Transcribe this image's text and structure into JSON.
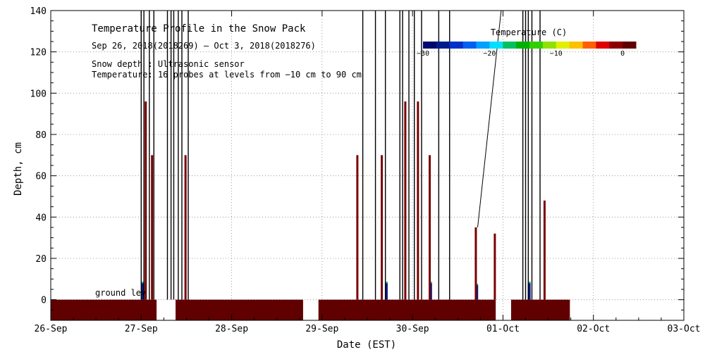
{
  "chart_data": {
    "type": "area",
    "title": "Temperature Profile in the Snow Pack",
    "subtitle": "Sep 26, 2018(2018269) – Oct  3, 2018(2018276)",
    "annotations": [
      "Snow depth : Ultrasonic sensor",
      "Temperature: 16 probes at levels from −10 cm to 90 cm"
    ],
    "ground_label": "ground lev",
    "xlabel": "Date (EST)",
    "ylabel": "Depth, cm",
    "xlim": [
      0,
      7
    ],
    "ylim": [
      -10,
      140
    ],
    "x_ticks": [
      0,
      1,
      2,
      3,
      4,
      5,
      6,
      7
    ],
    "x_tick_labels": [
      "26-Sep",
      "27-Sep",
      "28-Sep",
      "29-Sep",
      "30-Sep",
      "01-Oct",
      "02-Oct",
      "03-Oct"
    ],
    "y_ticks": [
      0,
      20,
      40,
      60,
      80,
      100,
      120,
      140
    ],
    "y_tick_labels": [
      "0",
      "20",
      "40",
      "60",
      "80",
      "100",
      "120",
      "140"
    ],
    "grid": true,
    "colorbar": {
      "title": "Temperature (C)",
      "range": [
        -30,
        2
      ],
      "tick_values": [
        -30,
        -20,
        -10,
        0
      ],
      "tick_labels": [
        "−30",
        "−20",
        "−10",
        "0"
      ],
      "colors": [
        "#000a6e",
        "#001c8c",
        "#0030c8",
        "#0060f0",
        "#00a0ff",
        "#00e0ff",
        "#00c060",
        "#00b000",
        "#30d000",
        "#90e000",
        "#e0f000",
        "#ffc000",
        "#ff6000",
        "#e00000",
        "#8b0000",
        "#600000"
      ]
    },
    "ground_band": {
      "range": [
        -10,
        0
      ],
      "segments": [
        [
          0.0,
          1.17
        ],
        [
          1.38,
          2.79
        ],
        [
          2.96,
          4.92
        ],
        [
          5.09,
          5.74
        ]
      ],
      "color": "#600000"
    },
    "snow_depth_spikes": [
      {
        "x": 1.0,
        "y": 140,
        "color": "#000000"
      },
      {
        "x": 1.03,
        "y": 140,
        "color": "#000000"
      },
      {
        "x": 1.05,
        "y": 96,
        "color": "#7a0000"
      },
      {
        "x": 1.09,
        "y": 140,
        "color": "#000000"
      },
      {
        "x": 1.12,
        "y": 70,
        "color": "#7a0000"
      },
      {
        "x": 1.14,
        "y": 140,
        "color": "#000000"
      },
      {
        "x": 1.29,
        "y": 140,
        "color": "#000000"
      },
      {
        "x": 1.33,
        "y": 140,
        "color": "#000000"
      },
      {
        "x": 1.36,
        "y": 140,
        "color": "#000000"
      },
      {
        "x": 1.41,
        "y": 140,
        "color": "#000000"
      },
      {
        "x": 1.45,
        "y": 140,
        "color": "#000000"
      },
      {
        "x": 1.49,
        "y": 70,
        "color": "#7a0000"
      },
      {
        "x": 1.52,
        "y": 140,
        "color": "#000000"
      },
      {
        "x": 3.39,
        "y": 70,
        "color": "#7a0000"
      },
      {
        "x": 3.45,
        "y": 140,
        "color": "#000000"
      },
      {
        "x": 3.59,
        "y": 140,
        "color": "#000000"
      },
      {
        "x": 3.66,
        "y": 70,
        "color": "#7a0000"
      },
      {
        "x": 3.7,
        "y": 140,
        "color": "#000000"
      },
      {
        "x": 3.86,
        "y": 140,
        "color": "#000000"
      },
      {
        "x": 3.89,
        "y": 140,
        "color": "#000000"
      },
      {
        "x": 3.92,
        "y": 96,
        "color": "#7a0000"
      },
      {
        "x": 3.96,
        "y": 140,
        "color": "#000000"
      },
      {
        "x": 4.02,
        "y": 140,
        "color": "#000000"
      },
      {
        "x": 4.06,
        "y": 96,
        "color": "#7a0000"
      },
      {
        "x": 4.1,
        "y": 140,
        "color": "#000000"
      },
      {
        "x": 4.19,
        "y": 70,
        "color": "#7a0000"
      },
      {
        "x": 4.29,
        "y": 140,
        "color": "#000000"
      },
      {
        "x": 4.41,
        "y": 140,
        "color": "#000000"
      },
      {
        "x": 4.7,
        "y": 35,
        "color": "#7a0000"
      },
      {
        "x": 4.91,
        "y": 32,
        "color": "#7a0000"
      },
      {
        "x": 5.22,
        "y": 140,
        "color": "#000000"
      },
      {
        "x": 5.25,
        "y": 140,
        "color": "#000000"
      },
      {
        "x": 5.28,
        "y": 140,
        "color": "#000000"
      },
      {
        "x": 5.32,
        "y": 140,
        "color": "#000000"
      },
      {
        "x": 5.41,
        "y": 140,
        "color": "#000000"
      },
      {
        "x": 5.46,
        "y": 48,
        "color": "#7a0000"
      }
    ],
    "cold_patches": [
      {
        "x": 1.02,
        "y0": 0,
        "y1": 8
      },
      {
        "x": 3.71,
        "y0": 0,
        "y1": 8
      },
      {
        "x": 4.2,
        "y0": 0,
        "y1": 8
      },
      {
        "x": 4.71,
        "y0": 0,
        "y1": 7
      },
      {
        "x": 5.29,
        "y0": 0,
        "y1": 8
      }
    ],
    "diagonal_line": {
      "x0": 4.72,
      "y0": 35,
      "x1": 4.98,
      "y1": 140
    }
  }
}
